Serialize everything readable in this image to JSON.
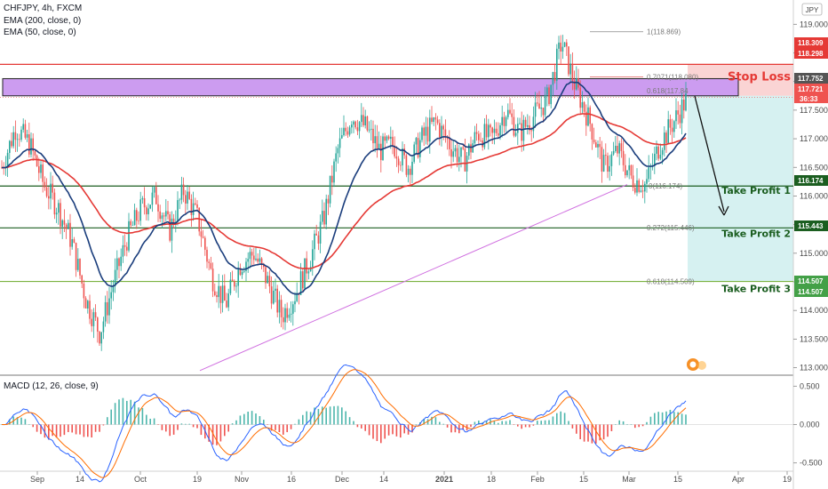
{
  "header": {
    "symbol": "CHFJPY, 4h, FXCM",
    "ema200": "EMA (200, close, 0)",
    "ema50": "EMA (50, close, 0)",
    "currency": "JPY"
  },
  "chart_data": [
    {
      "type": "candlestick",
      "title": "CHFJPY, 4h, FXCM",
      "ylim": [
        112.9,
        119.3
      ],
      "y_ticks": [
        "119.000",
        "118.500",
        "118.000",
        "117.500",
        "117.000",
        "116.500",
        "116.000",
        "115.500",
        "115.000",
        "114.500",
        "114.000",
        "113.500",
        "113.000"
      ],
      "x_ticks": [
        "Sep",
        "14",
        "Oct",
        "19",
        "Nov",
        "16",
        "Dec",
        "14",
        "2021",
        "18",
        "Feb",
        "15",
        "Mar",
        "15",
        "Apr",
        "19"
      ],
      "price_path": [
        [
          "Sep",
          116.5
        ],
        [
          "Sep",
          117.2
        ],
        [
          "Sep",
          116.9
        ],
        [
          "Sep",
          116.2
        ],
        [
          "14",
          115.8
        ],
        [
          "14",
          115.2
        ],
        [
          "14",
          114.2
        ],
        [
          "Oct",
          113.6
        ],
        [
          "Oct",
          114.5
        ],
        [
          "Oct",
          115.3
        ],
        [
          "Oct",
          115.8
        ],
        [
          "19",
          116.0
        ],
        [
          "19",
          115.4
        ],
        [
          "19",
          116.1
        ],
        [
          "19",
          115.6
        ],
        [
          "Nov",
          114.6
        ],
        [
          "Nov",
          114.1
        ],
        [
          "Nov",
          114.8
        ],
        [
          "16",
          115.0
        ],
        [
          "16",
          114.5
        ],
        [
          "16",
          113.9
        ],
        [
          "16",
          114.3
        ],
        [
          "16",
          114.9
        ],
        [
          "Dec",
          115.6
        ],
        [
          "Dec",
          116.8
        ],
        [
          "Dec",
          117.4
        ],
        [
          "14",
          117.2
        ],
        [
          "14",
          116.8
        ],
        [
          "14",
          116.9
        ],
        [
          "2021",
          116.5
        ],
        [
          "2021",
          117.0
        ],
        [
          "2021",
          117.3
        ],
        [
          "18",
          116.9
        ],
        [
          "18",
          116.6
        ],
        [
          "18",
          117.1
        ],
        [
          "Feb",
          117.0
        ],
        [
          "Feb",
          117.5
        ],
        [
          "Feb",
          117.1
        ],
        [
          "Feb",
          117.4
        ],
        [
          "15",
          117.7
        ],
        [
          "15",
          118.7
        ],
        [
          "15",
          117.9
        ],
        [
          "15",
          117.3
        ],
        [
          "15",
          116.5
        ],
        [
          "Mar",
          116.8
        ],
        [
          "Mar",
          116.3
        ],
        [
          "Mar",
          116.2
        ],
        [
          "Mar",
          116.9
        ],
        [
          "15",
          117.3
        ],
        [
          "15",
          117.72
        ]
      ],
      "current_price": 117.721,
      "countdown": "36:33",
      "price_labels": [
        {
          "text": "118.309",
          "value": 118.309,
          "color": "#e53935"
        },
        {
          "text": "118.298",
          "value": 118.298,
          "color": "#e53935"
        },
        {
          "text": "117.752",
          "value": 117.752,
          "color": "#555555"
        },
        {
          "text": "117.721",
          "value": 117.721,
          "color": "#ef5350"
        },
        {
          "text": "116.174",
          "value": 116.174,
          "color": "#1b5e20"
        },
        {
          "text": "115.443",
          "value": 115.443,
          "color": "#1b5e20"
        },
        {
          "text": "114.507",
          "value": 114.507,
          "color": "#43a047"
        },
        {
          "text": "114.507",
          "value": 114.507,
          "color": "#43a047"
        }
      ],
      "fib_labels": [
        {
          "text": "1(118.869)",
          "value": 118.869
        },
        {
          "text": "0.7071(118.080)",
          "value": 118.08
        },
        {
          "text": "0.618(117.84",
          "value": 117.84
        },
        {
          "text": "0(116.174)",
          "value": 116.174
        },
        {
          "text": "0.272(115.446)",
          "value": 115.446
        },
        {
          "text": "0.618(114.509)",
          "value": 114.509
        }
      ],
      "horizontal_levels": [
        {
          "value": 118.3,
          "color": "#e53935"
        },
        {
          "value": 116.174,
          "color": "#1b5e20"
        },
        {
          "value": 115.443,
          "color": "#1b5e20"
        },
        {
          "value": 114.507,
          "color": "#7cb342"
        }
      ],
      "resistance_zone": [
        117.75,
        118.05
      ],
      "stop_loss_zone": [
        117.75,
        118.3
      ],
      "target_zone": [
        114.507,
        117.75
      ],
      "trend_line": [
        [
          "Oct",
          112.95
        ],
        [
          "15",
          116.2
        ]
      ],
      "annotations": [
        {
          "text": "Stop Loss",
          "value": 118.08
        },
        {
          "text": "Take Profit 1",
          "value": 116.1
        },
        {
          "text": "Take Profit 2",
          "value": 115.35
        },
        {
          "text": "Take Profit 3",
          "value": 114.38
        }
      ],
      "series": [
        {
          "name": "EMA (50, close, 0)",
          "color": "#1a3d7c"
        },
        {
          "name": "EMA (200, close, 0)",
          "color": "#e53935"
        }
      ]
    },
    {
      "type": "line",
      "title": "MACD (12, 26, close, 9)",
      "ylim": [
        -0.55,
        0.55
      ],
      "y_ticks": [
        "0.500",
        "0.000",
        "-0.500"
      ]
    }
  ]
}
